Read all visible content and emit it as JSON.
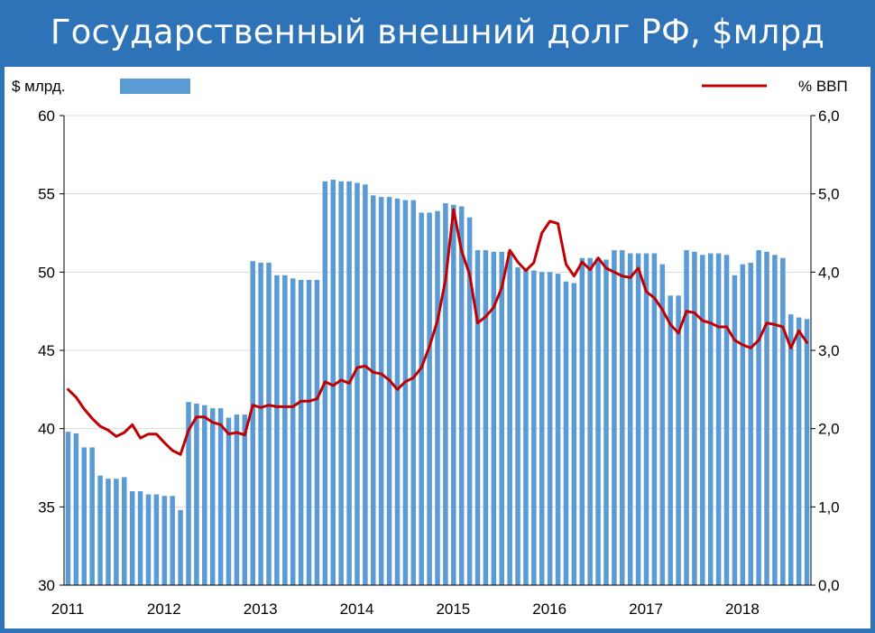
{
  "title": "Государственный внешний долг РФ, $млрд",
  "colors": {
    "background": "#2e73b8",
    "bar": "#5b9bd5",
    "line": "#c00000",
    "grid": "#d9d9d9"
  },
  "chart_data": {
    "type": "bar+line",
    "title": "Государственный внешний долг РФ, $млрд",
    "ylabel_left": "$ млрд.",
    "ylabel_right": "% ВВП",
    "ylim_left": [
      30,
      60
    ],
    "ylim_right": [
      0,
      6
    ],
    "yticks_left": [
      "30",
      "35",
      "40",
      "45",
      "50",
      "55",
      "60"
    ],
    "yticks_right": [
      "0,0",
      "1,0",
      "2,0",
      "3,0",
      "4,0",
      "5,0",
      "6,0"
    ],
    "x_labels": [
      "2011",
      "2012",
      "2013",
      "2014",
      "2015",
      "2016",
      "2017",
      "2018"
    ],
    "legend": [
      {
        "name": "$ млрд.",
        "kind": "bar"
      },
      {
        "name": "% ВВП",
        "kind": "line"
      }
    ],
    "grid": "horizontal",
    "series": [
      {
        "name": "$ млрд.",
        "kind": "bar",
        "axis": "left",
        "values": [
          39.8,
          39.7,
          38.8,
          38.8,
          37.0,
          36.8,
          36.8,
          36.9,
          36.0,
          36.0,
          35.8,
          35.8,
          35.7,
          35.7,
          34.8,
          41.7,
          41.6,
          41.5,
          41.3,
          41.3,
          40.7,
          40.9,
          40.9,
          50.7,
          50.6,
          50.6,
          49.8,
          49.8,
          49.6,
          49.5,
          49.5,
          49.5,
          55.8,
          55.9,
          55.8,
          55.8,
          55.7,
          55.6,
          54.9,
          54.8,
          54.8,
          54.7,
          54.6,
          54.6,
          53.8,
          53.8,
          53.9,
          54.4,
          54.3,
          54.2,
          53.5,
          51.4,
          51.4,
          51.3,
          51.3,
          51.3,
          50.3,
          50.2,
          50.1,
          50.0,
          50.0,
          49.9,
          49.4,
          49.3,
          50.9,
          50.9,
          50.9,
          50.8,
          51.4,
          51.4,
          51.2,
          51.2,
          51.2,
          51.2,
          50.5,
          48.5,
          48.5,
          51.4,
          51.3,
          51.1,
          51.2,
          51.2,
          51.1,
          49.8,
          50.5,
          50.6,
          51.4,
          51.3,
          51.1,
          50.9,
          47.3,
          47.1,
          47.0
        ]
      },
      {
        "name": "% ВВП",
        "kind": "line",
        "axis": "right",
        "values": [
          2.5,
          2.4,
          2.25,
          2.13,
          2.03,
          1.98,
          1.9,
          1.95,
          2.05,
          1.88,
          1.93,
          1.93,
          1.82,
          1.72,
          1.67,
          1.98,
          2.15,
          2.15,
          2.08,
          2.05,
          1.93,
          1.95,
          1.92,
          2.3,
          2.27,
          2.3,
          2.28,
          2.28,
          2.28,
          2.35,
          2.35,
          2.38,
          2.6,
          2.55,
          2.62,
          2.58,
          2.78,
          2.8,
          2.72,
          2.7,
          2.62,
          2.5,
          2.6,
          2.65,
          2.78,
          3.05,
          3.38,
          3.9,
          4.8,
          4.27,
          3.97,
          3.35,
          3.43,
          3.55,
          3.8,
          4.28,
          4.13,
          4.02,
          4.12,
          4.5,
          4.65,
          4.62,
          4.1,
          3.95,
          4.13,
          4.03,
          4.18,
          4.05,
          4.0,
          3.95,
          3.93,
          4.05,
          3.75,
          3.67,
          3.52,
          3.33,
          3.22,
          3.5,
          3.48,
          3.38,
          3.35,
          3.3,
          3.3,
          3.13,
          3.07,
          3.03,
          3.13,
          3.35,
          3.33,
          3.3,
          3.03,
          3.25,
          3.1
        ]
      }
    ]
  }
}
